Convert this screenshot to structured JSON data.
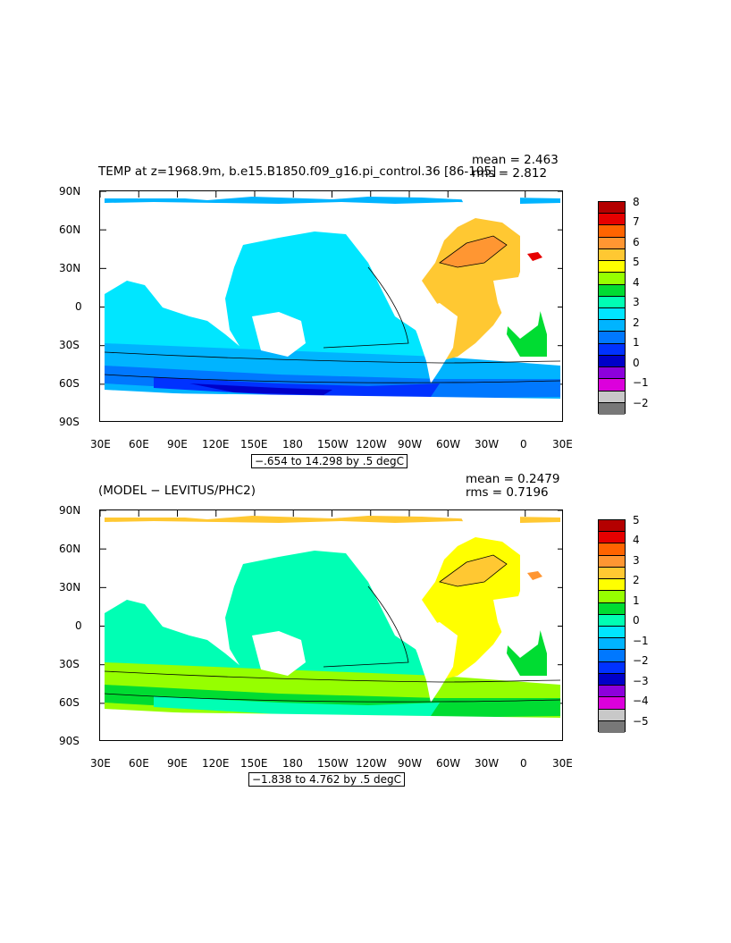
{
  "panels": [
    {
      "id": "top",
      "title": "TEMP at z=1968.9m, b.e15.B1850.f09_g16.pi_control.36  [86-105]",
      "mean_label": "mean = 2.463",
      "rms_label": "rms = 2.812",
      "range_label": "−.654 to 14.298 by .5 degC",
      "colorbar_labels": [
        "8",
        "7",
        "6",
        "5",
        "4",
        "3",
        "2",
        "1",
        "0",
        "−1",
        "−2"
      ],
      "colorbar_colors": [
        "#b40000",
        "#e60000",
        "#ff6400",
        "#ff9632",
        "#ffc832",
        "#ffff00",
        "#96ff00",
        "#00dc32",
        "#00ffb4",
        "#00e6ff",
        "#00b4ff",
        "#0078ff",
        "#0032ff",
        "#0000c8",
        "#8c00dc",
        "#dc00dc",
        "#c8c8c8",
        "#787878"
      ]
    },
    {
      "id": "bottom",
      "title": "(MODEL − LEVITUS/PHC2)",
      "mean_label": "mean = 0.2479",
      "rms_label": "rms = 0.7196",
      "range_label": "−1.838 to 4.762 by .5 degC",
      "colorbar_labels": [
        "5",
        "4",
        "3",
        "2",
        "1",
        "0",
        "−1",
        "−2",
        "−3",
        "−4",
        "−5"
      ],
      "colorbar_colors": [
        "#b40000",
        "#e60000",
        "#ff6400",
        "#ff9632",
        "#ffc832",
        "#ffff00",
        "#96ff00",
        "#00dc32",
        "#00ffb4",
        "#00e6ff",
        "#00b4ff",
        "#0078ff",
        "#0032ff",
        "#0000c8",
        "#8c00dc",
        "#dc00dc",
        "#c8c8c8",
        "#787878"
      ]
    }
  ],
  "axes": {
    "x_tick_labels": [
      "30E",
      "60E",
      "90E",
      "120E",
      "150E",
      "180",
      "150W",
      "120W",
      "90W",
      "60W",
      "30W",
      "0",
      "30E"
    ],
    "y_tick_labels": [
      "90N",
      "60N",
      "30N",
      "0",
      "30S",
      "60S",
      "90S"
    ]
  },
  "map_fields": {
    "top": {
      "atlantic": "#ffc832",
      "north_atlantic_core": "#ff9632",
      "pacific": "#00e6ff",
      "indian": "#00e6ff",
      "southern_bands": [
        "#00b4ff",
        "#0078ff",
        "#0032ff",
        "#0000c8"
      ],
      "arctic": "#00b4ff",
      "south_atlantic_east": "#00dc32",
      "mediterranean_red": "#e60000"
    },
    "bottom": {
      "atlantic": "#ffff00",
      "north_atlantic_core": "#ffc832",
      "pacific": "#00ffb4",
      "indian": "#00ffb4",
      "southern_bands": [
        "#96ff00",
        "#00dc32",
        "#00ffb4"
      ],
      "arctic": "#ffc832",
      "south_atlantic_east": "#00dc32",
      "mediterranean_red": "#ff9632"
    }
  }
}
